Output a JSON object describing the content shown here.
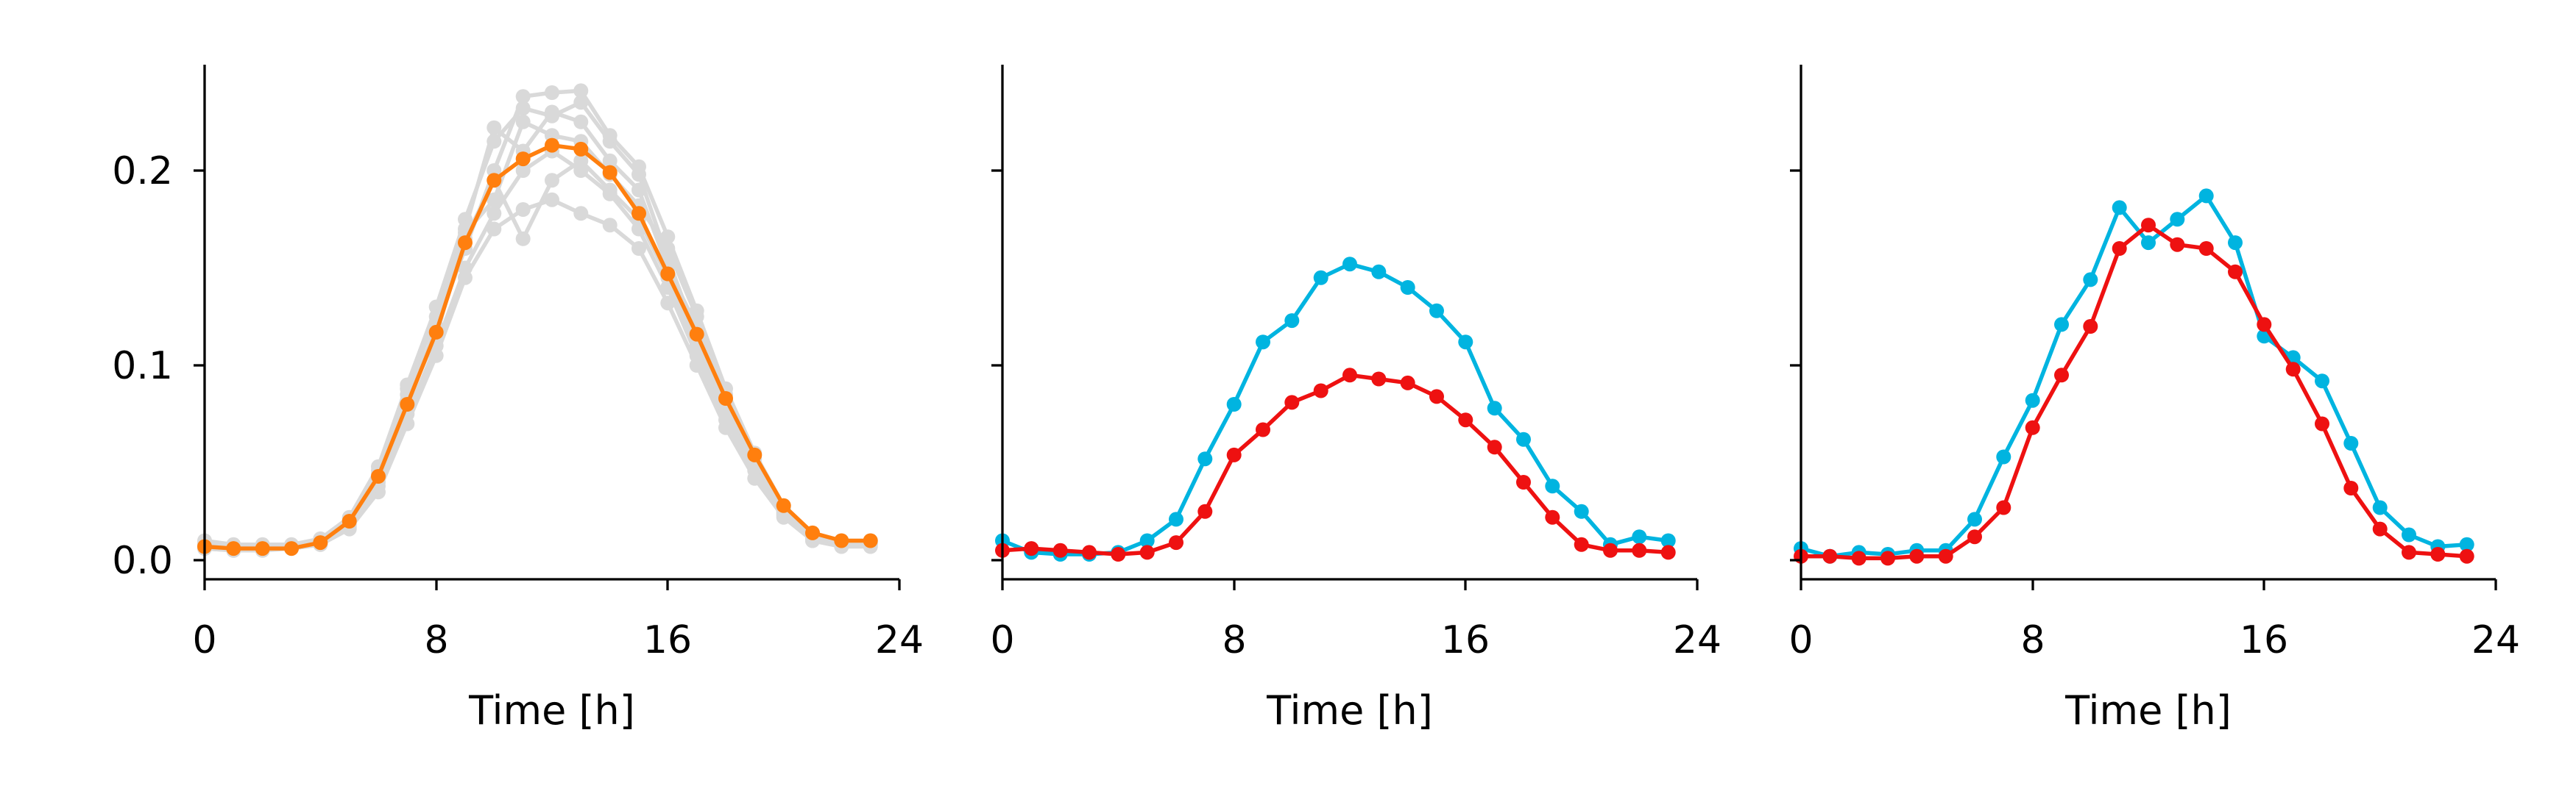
{
  "chart_data": [
    {
      "type": "line",
      "xlabel": "Time [h]",
      "ylabel": "",
      "xlim": [
        0,
        24
      ],
      "ylim": [
        -0.01,
        0.255
      ],
      "xticks": [
        0,
        8,
        16,
        24
      ],
      "yticks": [
        0.0,
        0.1,
        0.2
      ],
      "ytick_labels": [
        "0.0",
        "0.1",
        "0.2"
      ],
      "grid": false,
      "x": [
        0,
        1,
        2,
        3,
        4,
        5,
        6,
        7,
        8,
        9,
        10,
        11,
        12,
        13,
        14,
        15,
        16,
        17,
        18,
        19,
        20,
        21,
        22,
        23
      ],
      "background_series": [
        {
          "color": "#d9d9d9",
          "values": [
            0.01,
            0.008,
            0.008,
            0.008,
            0.011,
            0.022,
            0.048,
            0.09,
            0.13,
            0.175,
            0.215,
            0.232,
            0.228,
            0.235,
            0.215,
            0.198,
            0.155,
            0.115,
            0.08,
            0.05,
            0.025,
            0.012,
            0.009,
            0.009
          ]
        },
        {
          "color": "#d9d9d9",
          "values": [
            0.006,
            0.005,
            0.005,
            0.006,
            0.008,
            0.016,
            0.035,
            0.07,
            0.105,
            0.145,
            0.17,
            0.18,
            0.185,
            0.178,
            0.172,
            0.16,
            0.132,
            0.1,
            0.068,
            0.042,
            0.022,
            0.01,
            0.007,
            0.007
          ]
        },
        {
          "color": "#d9d9d9",
          "values": [
            0.008,
            0.007,
            0.007,
            0.007,
            0.01,
            0.02,
            0.042,
            0.08,
            0.12,
            0.16,
            0.2,
            0.238,
            0.24,
            0.241,
            0.218,
            0.202,
            0.166,
            0.128,
            0.088,
            0.055,
            0.028,
            0.014,
            0.01,
            0.01
          ]
        },
        {
          "color": "#d9d9d9",
          "values": [
            0.007,
            0.006,
            0.006,
            0.006,
            0.009,
            0.018,
            0.04,
            0.085,
            0.118,
            0.165,
            0.195,
            0.165,
            0.195,
            0.205,
            0.19,
            0.175,
            0.145,
            0.11,
            0.076,
            0.048,
            0.024,
            0.011,
            0.008,
            0.008
          ]
        },
        {
          "color": "#d9d9d9",
          "values": [
            0.009,
            0.007,
            0.007,
            0.007,
            0.01,
            0.021,
            0.046,
            0.088,
            0.125,
            0.17,
            0.222,
            0.21,
            0.23,
            0.225,
            0.205,
            0.19,
            0.15,
            0.12,
            0.085,
            0.052,
            0.027,
            0.013,
            0.01,
            0.01
          ]
        },
        {
          "color": "#d9d9d9",
          "values": [
            0.006,
            0.005,
            0.006,
            0.006,
            0.008,
            0.017,
            0.038,
            0.075,
            0.11,
            0.15,
            0.178,
            0.2,
            0.21,
            0.2,
            0.188,
            0.17,
            0.14,
            0.105,
            0.072,
            0.046,
            0.023,
            0.01,
            0.008,
            0.008
          ]
        },
        {
          "color": "#d9d9d9",
          "values": [
            0.008,
            0.006,
            0.007,
            0.007,
            0.009,
            0.019,
            0.044,
            0.082,
            0.115,
            0.168,
            0.185,
            0.225,
            0.218,
            0.215,
            0.198,
            0.182,
            0.16,
            0.125,
            0.082,
            0.05,
            0.026,
            0.012,
            0.009,
            0.009
          ]
        }
      ],
      "series": [
        {
          "color": "#ff7f0e",
          "values": [
            0.007,
            0.006,
            0.006,
            0.006,
            0.009,
            0.02,
            0.043,
            0.08,
            0.117,
            0.163,
            0.195,
            0.206,
            0.213,
            0.211,
            0.199,
            0.178,
            0.147,
            0.116,
            0.083,
            0.054,
            0.028,
            0.014,
            0.01,
            0.01
          ]
        }
      ]
    },
    {
      "type": "line",
      "xlabel": "Time [h]",
      "ylabel": "",
      "xlim": [
        0,
        24
      ],
      "ylim": [
        -0.01,
        0.255
      ],
      "xticks": [
        0,
        8,
        16,
        24
      ],
      "yticks": [
        0.0,
        0.1,
        0.2
      ],
      "ytick_labels": [
        "",
        "",
        ""
      ],
      "grid": false,
      "x": [
        0,
        1,
        2,
        3,
        4,
        5,
        6,
        7,
        8,
        9,
        10,
        11,
        12,
        13,
        14,
        15,
        16,
        17,
        18,
        19,
        20,
        21,
        22,
        23
      ],
      "background_series": [],
      "series": [
        {
          "color": "#00b4e0",
          "values": [
            0.01,
            0.004,
            0.003,
            0.003,
            0.004,
            0.01,
            0.021,
            0.052,
            0.08,
            0.112,
            0.123,
            0.145,
            0.152,
            0.148,
            0.14,
            0.128,
            0.112,
            0.078,
            0.062,
            0.038,
            0.025,
            0.008,
            0.012,
            0.01
          ]
        },
        {
          "color": "#ee1111",
          "values": [
            0.005,
            0.006,
            0.005,
            0.004,
            0.003,
            0.004,
            0.009,
            0.025,
            0.054,
            0.067,
            0.081,
            0.087,
            0.095,
            0.093,
            0.091,
            0.084,
            0.072,
            0.058,
            0.04,
            0.022,
            0.008,
            0.005,
            0.005,
            0.004
          ]
        }
      ]
    },
    {
      "type": "line",
      "xlabel": "Time [h]",
      "ylabel": "",
      "xlim": [
        0,
        24
      ],
      "ylim": [
        -0.01,
        0.255
      ],
      "xticks": [
        0,
        8,
        16,
        24
      ],
      "yticks": [
        0.0,
        0.1,
        0.2
      ],
      "ytick_labels": [
        "",
        "",
        ""
      ],
      "grid": false,
      "x": [
        0,
        1,
        2,
        3,
        4,
        5,
        6,
        7,
        8,
        9,
        10,
        11,
        12,
        13,
        14,
        15,
        16,
        17,
        18,
        19,
        20,
        21,
        22,
        23
      ],
      "background_series": [],
      "series": [
        {
          "color": "#00b4e0",
          "values": [
            0.006,
            0.002,
            0.004,
            0.003,
            0.005,
            0.005,
            0.021,
            0.053,
            0.082,
            0.121,
            0.144,
            0.181,
            0.163,
            0.175,
            0.187,
            0.163,
            0.115,
            0.104,
            0.092,
            0.06,
            0.027,
            0.013,
            0.007,
            0.008
          ]
        },
        {
          "color": "#ee1111",
          "values": [
            0.002,
            0.002,
            0.001,
            0.001,
            0.002,
            0.002,
            0.012,
            0.027,
            0.068,
            0.095,
            0.12,
            0.16,
            0.172,
            0.162,
            0.16,
            0.148,
            0.121,
            0.098,
            0.07,
            0.037,
            0.016,
            0.004,
            0.003,
            0.002
          ]
        }
      ]
    }
  ]
}
